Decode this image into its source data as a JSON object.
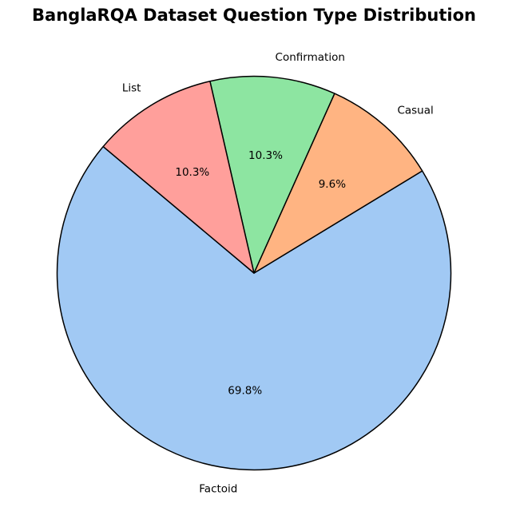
{
  "chart_data": {
    "type": "pie",
    "title": "BanglaRQA Dataset Question Type Distribution",
    "slices": [
      {
        "label": "Factoid",
        "value": 69.8,
        "pct_label": "69.8%",
        "color": "#a1c9f4"
      },
      {
        "label": "Casual",
        "value": 9.6,
        "pct_label": "9.6%",
        "color": "#ffb482"
      },
      {
        "label": "Confirmation",
        "value": 10.3,
        "pct_label": "10.3%",
        "color": "#8de5a1"
      },
      {
        "label": "List",
        "value": 10.3,
        "pct_label": "10.3%",
        "color": "#ff9f9b"
      }
    ],
    "edge_color": "#000000",
    "legend": false
  }
}
